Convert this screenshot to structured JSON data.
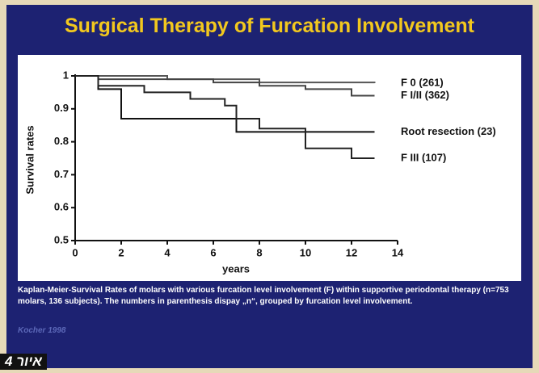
{
  "chart_data": {
    "type": "line",
    "step": true,
    "title": "Surgical Therapy of Furcation Involvement",
    "xlabel": "years",
    "ylabel": "Survival rates",
    "xlim": [
      0,
      14
    ],
    "xticks": [
      0,
      2,
      4,
      6,
      8,
      10,
      12,
      14
    ],
    "ylim": [
      0.5,
      1
    ],
    "yticks": [
      0.5,
      0.6,
      0.7,
      0.8,
      0.9,
      1
    ],
    "series": [
      {
        "name": "F 0 (261)",
        "color": "#555555",
        "x": [
          0,
          4,
          8,
          13
        ],
        "values": [
          1,
          0.99,
          0.98,
          0.978
        ]
      },
      {
        "name": "F I/II (362)",
        "color": "#444444",
        "x": [
          0,
          1,
          6,
          8,
          10,
          12,
          13
        ],
        "values": [
          1,
          0.99,
          0.98,
          0.97,
          0.96,
          0.94,
          0.94
        ]
      },
      {
        "name": "Root resection (23)",
        "color": "#111111",
        "x": [
          0,
          1,
          2,
          7,
          13
        ],
        "values": [
          1,
          0.96,
          0.87,
          0.83,
          0.83
        ]
      },
      {
        "name": "F III (107)",
        "color": "#222222",
        "x": [
          0,
          1,
          3,
          5,
          6.5,
          7,
          8,
          10,
          12,
          13
        ],
        "values": [
          1,
          0.97,
          0.95,
          0.93,
          0.91,
          0.87,
          0.84,
          0.78,
          0.75,
          0.75
        ]
      }
    ]
  },
  "caption": "Kaplan-Meier-Survival Rates of molars with various furcation level involvement (F) within supportive periodontal therapy (n=753 molars, 136 subjects). The numbers in parenthesis dispay „n“, grouped by furcation level involvement.",
  "source": "Kocher 1998",
  "figure_label": "איור 4"
}
